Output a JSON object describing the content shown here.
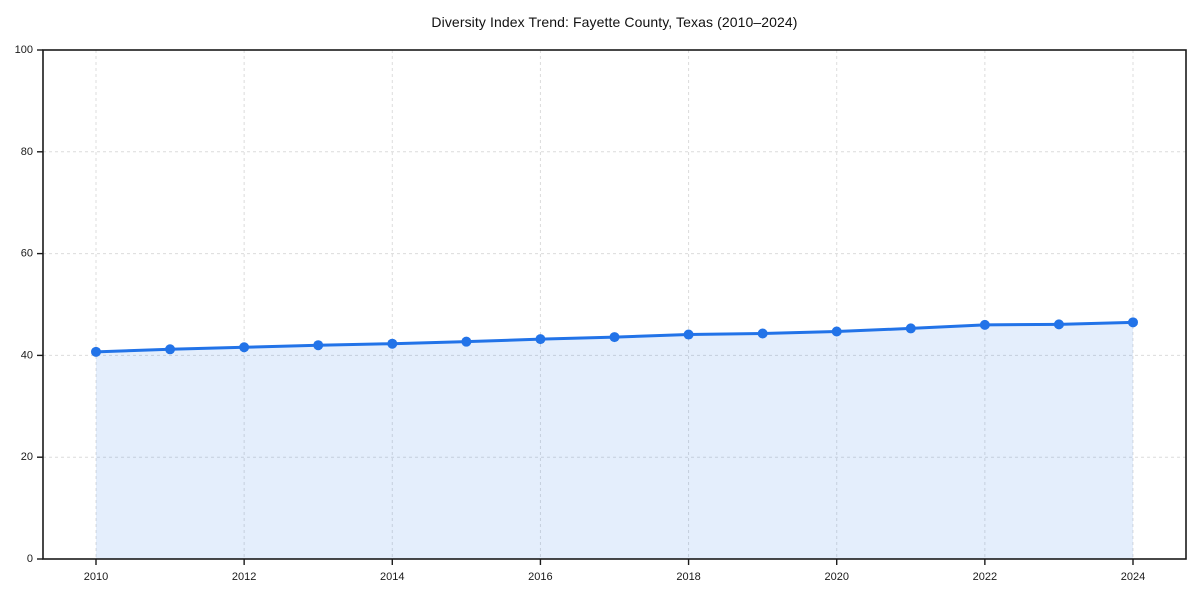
{
  "page": {
    "background": "#ffffff"
  },
  "chart_data": {
    "type": "area",
    "title": "Diversity Index Trend: Fayette County, Texas (2010–2024)",
    "x": [
      2010,
      2011,
      2012,
      2013,
      2014,
      2015,
      2016,
      2017,
      2018,
      2019,
      2020,
      2021,
      2022,
      2023,
      2024
    ],
    "series": [
      {
        "name": "Diversity Index",
        "values": [
          40.7,
          41.2,
          41.6,
          42.0,
          42.3,
          42.7,
          43.2,
          43.6,
          44.1,
          44.3,
          44.7,
          45.3,
          46.0,
          46.1,
          46.5
        ]
      }
    ],
    "xlabel": "",
    "ylabel": "",
    "ylim": [
      0,
      100
    ],
    "y_ticks": [
      0,
      20,
      40,
      60,
      80,
      100
    ],
    "x_ticks": [
      2010,
      2012,
      2014,
      2016,
      2018,
      2020,
      2022,
      2024
    ],
    "grid": true,
    "legend": "none",
    "colors": {
      "line": "#2273e8",
      "marker": "#2273e8",
      "fill": "#2273e8",
      "fill_opacity": 0.12,
      "grid": "#dcdcdc",
      "axis": "#1a1a1a",
      "text": "#1a1a1a",
      "background": "#ffffff"
    }
  }
}
